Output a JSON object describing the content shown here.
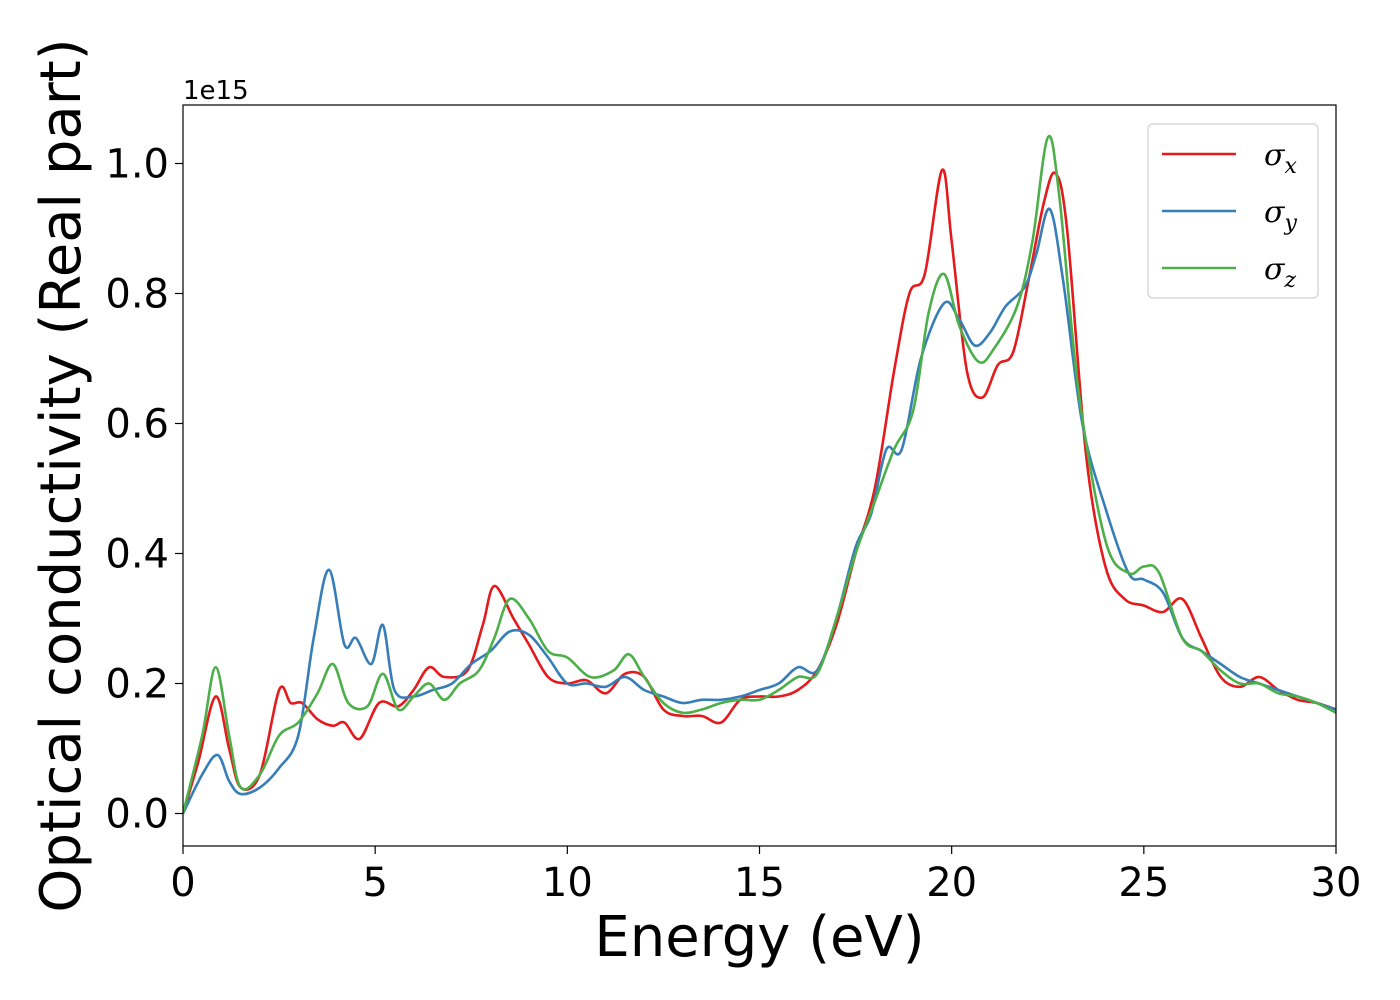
{
  "chart_data": {
    "type": "line",
    "xlabel": "Energy (eV)",
    "ylabel": "Optical conductivity (Real part)",
    "offset_text": "1e15",
    "xlim": [
      0,
      30
    ],
    "ylim": [
      -0.05,
      1.09
    ],
    "xticks": [
      0,
      5,
      10,
      15,
      20,
      25,
      30
    ],
    "xtick_labels": [
      "0",
      "5",
      "10",
      "15",
      "20",
      "25",
      "30"
    ],
    "yticks": [
      0.0,
      0.2,
      0.4,
      0.6,
      0.8,
      1.0
    ],
    "ytick_labels": [
      "0.0",
      "0.2",
      "0.4",
      "0.6",
      "0.8",
      "1.0"
    ],
    "grid": false,
    "legend_position": "top-right",
    "series": [
      {
        "name": "σx",
        "legend_base": "σ",
        "legend_sub": "x",
        "color": "#e41a1c",
        "points": [
          [
            0,
            0
          ],
          [
            0.4,
            0.08
          ],
          [
            0.85,
            0.18
          ],
          [
            1.2,
            0.1
          ],
          [
            1.5,
            0.04
          ],
          [
            2.0,
            0.06
          ],
          [
            2.5,
            0.19
          ],
          [
            2.8,
            0.17
          ],
          [
            3.1,
            0.17
          ],
          [
            3.5,
            0.145
          ],
          [
            3.9,
            0.135
          ],
          [
            4.2,
            0.14
          ],
          [
            4.6,
            0.115
          ],
          [
            5.1,
            0.17
          ],
          [
            5.6,
            0.165
          ],
          [
            6.0,
            0.19
          ],
          [
            6.4,
            0.225
          ],
          [
            6.8,
            0.21
          ],
          [
            7.4,
            0.22
          ],
          [
            7.8,
            0.29
          ],
          [
            8.1,
            0.35
          ],
          [
            8.6,
            0.3
          ],
          [
            9.0,
            0.26
          ],
          [
            9.5,
            0.21
          ],
          [
            10.0,
            0.2
          ],
          [
            10.5,
            0.205
          ],
          [
            11.0,
            0.185
          ],
          [
            11.5,
            0.215
          ],
          [
            12.0,
            0.21
          ],
          [
            12.5,
            0.16
          ],
          [
            13.0,
            0.15
          ],
          [
            13.5,
            0.15
          ],
          [
            14.0,
            0.14
          ],
          [
            14.5,
            0.175
          ],
          [
            15.0,
            0.18
          ],
          [
            15.5,
            0.18
          ],
          [
            16.0,
            0.19
          ],
          [
            16.5,
            0.22
          ],
          [
            17.0,
            0.29
          ],
          [
            17.5,
            0.4
          ],
          [
            18.0,
            0.5
          ],
          [
            18.5,
            0.68
          ],
          [
            18.9,
            0.8
          ],
          [
            19.3,
            0.83
          ],
          [
            19.75,
            0.99
          ],
          [
            20.0,
            0.88
          ],
          [
            20.4,
            0.68
          ],
          [
            20.8,
            0.64
          ],
          [
            21.2,
            0.69
          ],
          [
            21.6,
            0.71
          ],
          [
            22.0,
            0.82
          ],
          [
            22.4,
            0.94
          ],
          [
            22.7,
            0.985
          ],
          [
            23.0,
            0.9
          ],
          [
            23.5,
            0.55
          ],
          [
            24.0,
            0.38
          ],
          [
            24.5,
            0.33
          ],
          [
            25.0,
            0.32
          ],
          [
            25.5,
            0.31
          ],
          [
            26.0,
            0.33
          ],
          [
            26.5,
            0.27
          ],
          [
            27.0,
            0.21
          ],
          [
            27.5,
            0.195
          ],
          [
            28.0,
            0.21
          ],
          [
            28.5,
            0.19
          ],
          [
            29.0,
            0.175
          ],
          [
            29.5,
            0.17
          ],
          [
            30.0,
            0.16
          ]
        ]
      },
      {
        "name": "σy",
        "legend_base": "σ",
        "legend_sub": "y",
        "color": "#377eb8",
        "points": [
          [
            0,
            0
          ],
          [
            0.5,
            0.06
          ],
          [
            0.9,
            0.09
          ],
          [
            1.2,
            0.05
          ],
          [
            1.5,
            0.03
          ],
          [
            2.0,
            0.04
          ],
          [
            2.5,
            0.07
          ],
          [
            3.0,
            0.12
          ],
          [
            3.4,
            0.27
          ],
          [
            3.8,
            0.375
          ],
          [
            4.2,
            0.26
          ],
          [
            4.5,
            0.27
          ],
          [
            4.9,
            0.23
          ],
          [
            5.2,
            0.29
          ],
          [
            5.5,
            0.19
          ],
          [
            6.0,
            0.18
          ],
          [
            6.5,
            0.19
          ],
          [
            7.0,
            0.2
          ],
          [
            7.5,
            0.23
          ],
          [
            8.0,
            0.25
          ],
          [
            8.5,
            0.28
          ],
          [
            9.0,
            0.275
          ],
          [
            9.5,
            0.24
          ],
          [
            10.0,
            0.2
          ],
          [
            10.5,
            0.2
          ],
          [
            11.0,
            0.195
          ],
          [
            11.5,
            0.21
          ],
          [
            12.0,
            0.19
          ],
          [
            12.5,
            0.18
          ],
          [
            13.0,
            0.17
          ],
          [
            13.5,
            0.175
          ],
          [
            14.0,
            0.175
          ],
          [
            14.5,
            0.18
          ],
          [
            15.0,
            0.19
          ],
          [
            15.5,
            0.2
          ],
          [
            16.0,
            0.225
          ],
          [
            16.5,
            0.22
          ],
          [
            17.0,
            0.3
          ],
          [
            17.5,
            0.41
          ],
          [
            17.9,
            0.46
          ],
          [
            18.3,
            0.56
          ],
          [
            18.7,
            0.56
          ],
          [
            19.2,
            0.7
          ],
          [
            19.8,
            0.785
          ],
          [
            20.2,
            0.76
          ],
          [
            20.6,
            0.72
          ],
          [
            21.0,
            0.74
          ],
          [
            21.4,
            0.78
          ],
          [
            21.9,
            0.81
          ],
          [
            22.2,
            0.86
          ],
          [
            22.55,
            0.93
          ],
          [
            22.9,
            0.82
          ],
          [
            23.4,
            0.6
          ],
          [
            24.0,
            0.47
          ],
          [
            24.6,
            0.37
          ],
          [
            25.0,
            0.36
          ],
          [
            25.5,
            0.34
          ],
          [
            26.0,
            0.27
          ],
          [
            26.5,
            0.25
          ],
          [
            27.0,
            0.23
          ],
          [
            27.5,
            0.21
          ],
          [
            28.0,
            0.2
          ],
          [
            28.5,
            0.19
          ],
          [
            29.0,
            0.18
          ],
          [
            29.5,
            0.17
          ],
          [
            30.0,
            0.16
          ]
        ]
      },
      {
        "name": "σz",
        "legend_base": "σ",
        "legend_sub": "z",
        "color": "#4daf4a",
        "points": [
          [
            0,
            0
          ],
          [
            0.5,
            0.12
          ],
          [
            0.85,
            0.225
          ],
          [
            1.2,
            0.12
          ],
          [
            1.5,
            0.04
          ],
          [
            2.0,
            0.06
          ],
          [
            2.5,
            0.12
          ],
          [
            3.0,
            0.14
          ],
          [
            3.5,
            0.185
          ],
          [
            3.9,
            0.23
          ],
          [
            4.3,
            0.17
          ],
          [
            4.8,
            0.165
          ],
          [
            5.2,
            0.215
          ],
          [
            5.6,
            0.16
          ],
          [
            6.0,
            0.18
          ],
          [
            6.4,
            0.2
          ],
          [
            6.8,
            0.175
          ],
          [
            7.2,
            0.2
          ],
          [
            7.7,
            0.22
          ],
          [
            8.1,
            0.27
          ],
          [
            8.5,
            0.33
          ],
          [
            9.0,
            0.3
          ],
          [
            9.5,
            0.25
          ],
          [
            10.0,
            0.24
          ],
          [
            10.6,
            0.21
          ],
          [
            11.2,
            0.22
          ],
          [
            11.6,
            0.245
          ],
          [
            12.0,
            0.21
          ],
          [
            12.5,
            0.17
          ],
          [
            13.0,
            0.155
          ],
          [
            13.5,
            0.16
          ],
          [
            14.0,
            0.17
          ],
          [
            14.5,
            0.175
          ],
          [
            15.0,
            0.175
          ],
          [
            15.5,
            0.19
          ],
          [
            16.0,
            0.21
          ],
          [
            16.5,
            0.215
          ],
          [
            17.0,
            0.3
          ],
          [
            17.5,
            0.4
          ],
          [
            18.0,
            0.48
          ],
          [
            18.5,
            0.56
          ],
          [
            19.0,
            0.62
          ],
          [
            19.4,
            0.77
          ],
          [
            19.8,
            0.83
          ],
          [
            20.2,
            0.75
          ],
          [
            20.7,
            0.695
          ],
          [
            21.1,
            0.715
          ],
          [
            21.7,
            0.78
          ],
          [
            22.1,
            0.88
          ],
          [
            22.5,
            1.04
          ],
          [
            22.8,
            0.95
          ],
          [
            23.3,
            0.65
          ],
          [
            24.0,
            0.42
          ],
          [
            24.6,
            0.37
          ],
          [
            25.0,
            0.38
          ],
          [
            25.4,
            0.37
          ],
          [
            26.0,
            0.27
          ],
          [
            26.5,
            0.25
          ],
          [
            27.0,
            0.22
          ],
          [
            27.5,
            0.2
          ],
          [
            28.0,
            0.2
          ],
          [
            28.5,
            0.185
          ],
          [
            29.0,
            0.18
          ],
          [
            29.5,
            0.17
          ],
          [
            30.0,
            0.155
          ]
        ]
      }
    ]
  }
}
